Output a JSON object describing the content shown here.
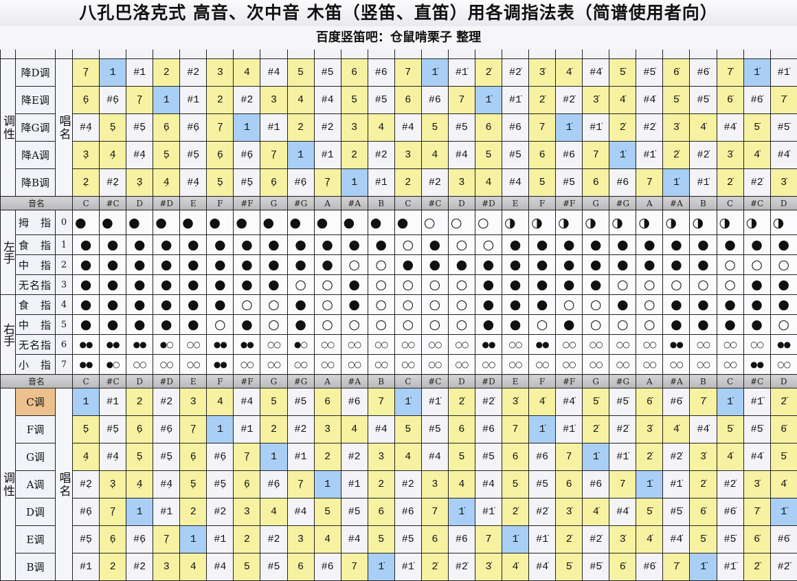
{
  "title": "八孔巴洛克式 高音、次中音 木笛（竖笛、直笛）用各调指法表（简谱使用者向）",
  "subtitle": "百度竖笛吧：仓鼠啃栗子 整理",
  "labels": {
    "key": "调性",
    "solfege": "唱名",
    "note_name": "音名",
    "left_hand": "左手",
    "right_hand": "右手"
  },
  "colors": {
    "natural": "#f6f2a2",
    "tonic": "#a9cff6",
    "sharp": "#f4f4f8",
    "current_key": "#ecc18f",
    "header": "#c4c4c6"
  },
  "note_names": [
    "C",
    "#C",
    "D",
    "#D",
    "E",
    "F",
    "#F",
    "G",
    "#G",
    "A",
    "#A",
    "B",
    "C",
    "#C",
    "D",
    "#D",
    "E",
    "F",
    "#F",
    "G",
    "#G",
    "A",
    "#A",
    "B",
    "C",
    "#C",
    "D"
  ],
  "top_keys": [
    {
      "key": "降D调",
      "notes": [
        "7̣",
        "1",
        "#1",
        "2",
        "#2",
        "3",
        "4",
        "#4",
        "5",
        "#5",
        "6",
        "#6",
        "7",
        "1̇",
        "#1̇",
        "2̇",
        "#2̇",
        "3̇",
        "4̇",
        "#4̇",
        "5̇",
        "#5̇",
        "6̇",
        "#6̇",
        "7̇",
        "1̇",
        "#1̇"
      ]
    },
    {
      "key": "降E调",
      "notes": [
        "6̣",
        "#6̣",
        "7̣",
        "1",
        "#1",
        "2",
        "#2",
        "3",
        "4",
        "#4",
        "5",
        "#5",
        "6",
        "#6",
        "7",
        "1̇",
        "#1̇",
        "2̇",
        "#2̇",
        "3̇",
        "4̇",
        "#4̇",
        "5̇",
        "#5̇",
        "6̇",
        "#6̇",
        "7̇"
      ]
    },
    {
      "key": "降G调",
      "notes": [
        "#4̣",
        "5̣",
        "#5̣",
        "6̣",
        "#6̣",
        "7̣",
        "1",
        "#1",
        "2",
        "#2",
        "3",
        "4",
        "#4",
        "5",
        "#5",
        "6",
        "#6",
        "7",
        "1̇",
        "#1̇",
        "2̇",
        "#2̇",
        "3̇",
        "4̇",
        "#4̇",
        "5̇",
        "#5̇"
      ]
    },
    {
      "key": "降A调",
      "notes": [
        "3̣",
        "4̣",
        "#4̣",
        "5̣",
        "#5̣",
        "6̣",
        "#6̣",
        "7̣",
        "1",
        "#1",
        "2",
        "#2",
        "3",
        "4",
        "#4",
        "5",
        "#5",
        "6",
        "#6",
        "7",
        "1̇",
        "#1̇",
        "2̇",
        "#2̇",
        "3̇",
        "4̇",
        "#4̇"
      ]
    },
    {
      "key": "降B调",
      "notes": [
        "2̣",
        "#2̣",
        "3̣",
        "4̣",
        "#4̣",
        "5̣",
        "#5̣",
        "6̣",
        "#6̣",
        "7̣",
        "1",
        "#1",
        "2",
        "#2",
        "3",
        "4",
        "#4",
        "5",
        "#5",
        "6",
        "#6",
        "7",
        "1̇",
        "#1̇",
        "2̇",
        "#2̇",
        "3̇"
      ]
    }
  ],
  "fingering": [
    {
      "hand": "left",
      "finger": "拇　指",
      "number": "0",
      "marks": [
        "●",
        "●",
        "●",
        "●",
        "●",
        "●",
        "●",
        "●",
        "●",
        "●",
        "●",
        "●",
        "●",
        "○",
        "○",
        "○",
        "◑",
        "◑",
        "◑",
        "◑",
        "◑",
        "◑",
        "◑",
        "◑",
        "◑",
        "◑",
        "◑"
      ]
    },
    {
      "hand": "left",
      "finger": "食　指",
      "number": "1",
      "marks": [
        "●",
        "●",
        "●",
        "●",
        "●",
        "●",
        "●",
        "●",
        "●",
        "●",
        "●",
        "●",
        "○",
        "●",
        "○",
        "○",
        "●",
        "●",
        "●",
        "●",
        "●",
        "●",
        "●",
        "●",
        "●",
        "●",
        "●"
      ]
    },
    {
      "hand": "left",
      "finger": "中　指",
      "number": "2",
      "marks": [
        "●",
        "●",
        "●",
        "●",
        "●",
        "●",
        "●",
        "●",
        "●",
        "●",
        "○",
        "○",
        "●",
        "●",
        "●",
        "●",
        "●",
        "●",
        "●",
        "●",
        "●",
        "●",
        "●",
        "●",
        "○",
        "○",
        "○"
      ]
    },
    {
      "hand": "left",
      "finger": "无名指",
      "number": "3",
      "marks": [
        "●",
        "●",
        "●",
        "●",
        "●",
        "●",
        "●",
        "●",
        "○",
        "○",
        "●",
        "○",
        "○",
        "○",
        "○",
        "●",
        "●",
        "●",
        "●",
        "●",
        "○",
        "○",
        "○",
        "○",
        "○",
        "●",
        "●"
      ]
    },
    {
      "hand": "right",
      "finger": "食　指",
      "number": "4",
      "marks": [
        "●",
        "●",
        "●",
        "●",
        "●",
        "●",
        "○",
        "○",
        "●",
        "○",
        "●",
        "○",
        "○",
        "○",
        "○",
        "●",
        "●",
        "●",
        "○",
        "○",
        "●",
        "○",
        "●",
        "●",
        "●",
        "●",
        "●"
      ]
    },
    {
      "hand": "right",
      "finger": "中　指",
      "number": "5",
      "marks": [
        "●",
        "●",
        "●",
        "●",
        "●",
        "○",
        "●",
        "○",
        "●",
        "○",
        "○",
        "○",
        "○",
        "○",
        "○",
        "●",
        "●",
        "○",
        "●",
        "○",
        "○",
        "○",
        "●",
        "●",
        "●",
        "●",
        "○"
      ]
    },
    {
      "hand": "right",
      "finger": "无名指",
      "number": "6",
      "marks": [
        "●●",
        "●●",
        "●●",
        "●○",
        "○○",
        "●●",
        "●●",
        "○○",
        "●○",
        "○○",
        "○○",
        "○○",
        "○○",
        "○○",
        "○○",
        "●●",
        "○○",
        "●●",
        "○○",
        "○○",
        "○○",
        "○○",
        "●●",
        "○○",
        "○○",
        "○○",
        "●●"
      ]
    },
    {
      "hand": "right",
      "finger": "小　指",
      "number": "7",
      "marks": [
        "●●",
        "●○",
        "○○",
        "○○",
        "○○",
        "●●",
        "○○",
        "○○",
        "○○",
        "○○",
        "○○",
        "○○",
        "○○",
        "○○",
        "○○",
        "○○",
        "○○",
        "○○",
        "○○",
        "○○",
        "○○",
        "○○",
        "○○",
        "○○",
        "○○",
        "●●",
        "○○"
      ]
    }
  ],
  "bottom_keys": [
    {
      "key": "C调",
      "current": true,
      "notes": [
        "1",
        "#1",
        "2",
        "#2",
        "3",
        "4",
        "#4",
        "5",
        "#5",
        "6",
        "#6",
        "7",
        "1̇",
        "#1̇",
        "2̇",
        "#2̇",
        "3̇",
        "4̇",
        "#4̇",
        "5̇",
        "#5̇",
        "6̇",
        "#6̇",
        "7̇",
        "1̇",
        "#1̈",
        "2̈"
      ]
    },
    {
      "key": "F调",
      "notes": [
        "5̣",
        "#5̣",
        "6̣",
        "#6̣",
        "7̣",
        "1",
        "#1",
        "2",
        "#2",
        "3",
        "4",
        "#4",
        "5",
        "#5",
        "6",
        "#6",
        "7",
        "1̇",
        "#1̇",
        "2̇",
        "#2̇",
        "3̇",
        "4̇",
        "#4̇",
        "5̇",
        "#5̇",
        "6̇"
      ]
    },
    {
      "key": "G调",
      "notes": [
        "4̣",
        "#4̣",
        "5̣",
        "#5̣",
        "6̣",
        "#6̣",
        "7̣",
        "1",
        "#1",
        "2",
        "#2",
        "3",
        "4",
        "#4",
        "5",
        "#5",
        "6",
        "#6",
        "7",
        "1̇",
        "#1̇",
        "2̇",
        "#2̇",
        "3̇",
        "4̇",
        "#4̇",
        "5̇"
      ]
    },
    {
      "key": "A调",
      "notes": [
        "#2̣",
        "3̣",
        "4̣",
        "#4̣",
        "5̣",
        "#5̣",
        "6̣",
        "#6̣",
        "7̣",
        "1",
        "#1",
        "2",
        "#2",
        "3",
        "4",
        "#4",
        "5",
        "#5",
        "6",
        "#6",
        "7",
        "1̇",
        "#1̇",
        "2̇",
        "#2̇",
        "3̇",
        "4̇"
      ]
    },
    {
      "key": "D调",
      "notes": [
        "#6̣",
        "7̣",
        "1",
        "#1",
        "2",
        "#2",
        "3",
        "4",
        "#4",
        "5",
        "#5",
        "6",
        "#6",
        "7",
        "1̇",
        "#1̇",
        "2̇",
        "#2̇",
        "3̇",
        "4̇",
        "#4̇",
        "5̇",
        "#5̇",
        "6̇",
        "#6̇",
        "7̇",
        "1̈"
      ]
    },
    {
      "key": "E调",
      "notes": [
        "#5̣",
        "6̣",
        "#6̣",
        "7̣",
        "1",
        "#1",
        "2",
        "#2",
        "3",
        "4",
        "#4",
        "5",
        "#5",
        "6",
        "#6",
        "7",
        "1̇",
        "#1̇",
        "2̇",
        "#2̇",
        "3̇",
        "4̇",
        "#4̇",
        "5̇",
        "#5̇",
        "6̇",
        "#6̇"
      ]
    },
    {
      "key": "B调",
      "notes": [
        "#1",
        "2",
        "#2",
        "3",
        "4",
        "#4",
        "5",
        "#5",
        "6",
        "#6",
        "7",
        "1̇",
        "#1̇",
        "2̇",
        "#2̇",
        "3̇",
        "4̇",
        "#4̇",
        "5̇",
        "#5̇",
        "6̇",
        "#6̇",
        "7̇",
        "1̈",
        "#1̈",
        "2̈",
        "#2̈"
      ]
    }
  ]
}
